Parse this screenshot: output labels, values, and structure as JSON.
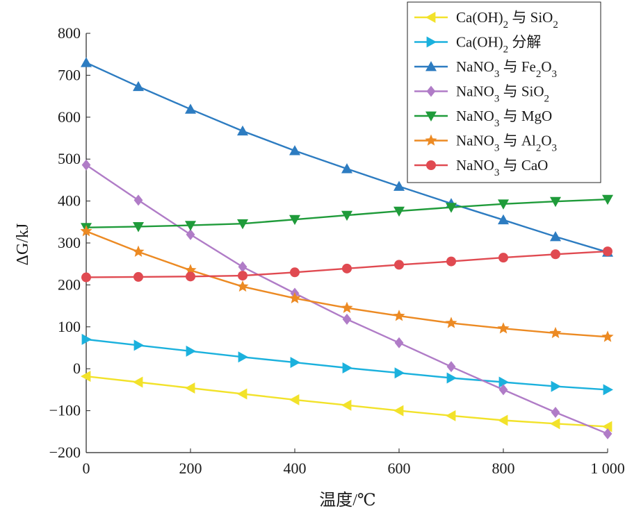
{
  "chart_data": {
    "type": "line",
    "xlabel": "温度/℃",
    "ylabel": "ΔG/kJ",
    "xlim": [
      0,
      1000
    ],
    "ylim": [
      -200,
      800
    ],
    "x": [
      0,
      100,
      200,
      300,
      400,
      500,
      600,
      700,
      800,
      900,
      1000
    ],
    "x_tick_labels": [
      "0",
      "200",
      "400",
      "600",
      "800",
      "1 000"
    ],
    "x_tick_values": [
      0,
      200,
      400,
      600,
      800,
      1000
    ],
    "y_tick_labels": [
      "−200",
      "−100",
      "0",
      "100",
      "200",
      "300",
      "400",
      "500",
      "600",
      "700",
      "800"
    ],
    "y_tick_values": [
      -200,
      -100,
      0,
      100,
      200,
      300,
      400,
      500,
      600,
      700,
      800
    ],
    "grid": false,
    "legend_position": "top-right",
    "series": [
      {
        "name": "Ca(OH)2 与 SiO2",
        "legend": {
          "a": "Ca(OH)",
          "a_sub": "2",
          "b": " 与 SiO",
          "b_sub": "2",
          "c": ""
        },
        "color": "#f2e22a",
        "marker": "triangle-left",
        "values": [
          -18,
          -32,
          -46,
          -60,
          -74,
          -87,
          -100,
          -112,
          -123,
          -131,
          -138
        ]
      },
      {
        "name": "Ca(OH)2 分解",
        "legend": {
          "a": "Ca(OH)",
          "a_sub": "2",
          "b": " 分解",
          "b_sub": "",
          "c": ""
        },
        "color": "#1bb1dd",
        "marker": "triangle-right",
        "values": [
          70,
          56,
          42,
          28,
          15,
          2,
          -10,
          -22,
          -32,
          -42,
          -50
        ]
      },
      {
        "name": "NaNO3 与 Fe2O3",
        "legend": {
          "a": "NaNO",
          "a_sub": "3",
          "b": " 与 Fe",
          "b_sub": "2",
          "c": "O",
          "c_sub": "3"
        },
        "color": "#2d7cc1",
        "marker": "triangle-up",
        "values": [
          730,
          673,
          619,
          567,
          520,
          477,
          435,
          394,
          355,
          315,
          278
        ]
      },
      {
        "name": "NaNO3 与 SiO2",
        "legend": {
          "a": "NaNO",
          "a_sub": "3",
          "b": " 与 SiO",
          "b_sub": "2",
          "c": ""
        },
        "color": "#b07cc7",
        "marker": "diamond",
        "values": [
          486,
          402,
          320,
          243,
          180,
          118,
          62,
          5,
          -50,
          -104,
          -155
        ]
      },
      {
        "name": "NaNO3 与 MgO",
        "legend": {
          "a": "NaNO",
          "a_sub": "3",
          "b": " 与 MgO",
          "b_sub": "",
          "c": ""
        },
        "color": "#1f9b3a",
        "marker": "triangle-down",
        "values": [
          337,
          339,
          342,
          346,
          356,
          366,
          376,
          385,
          393,
          399,
          404
        ]
      },
      {
        "name": "NaNO3 与 Al2O3",
        "legend": {
          "a": "NaNO",
          "a_sub": "3",
          "b": " 与 Al",
          "b_sub": "2",
          "c": "O",
          "c_sub": "3"
        },
        "color": "#ec8a23",
        "marker": "star",
        "values": [
          328,
          279,
          235,
          196,
          168,
          145,
          126,
          109,
          96,
          85,
          76
        ]
      },
      {
        "name": "NaNO3 与 CaO",
        "legend": {
          "a": "NaNO",
          "a_sub": "3",
          "b": " 与 CaO",
          "b_sub": "",
          "c": ""
        },
        "color": "#e04a51",
        "marker": "circle",
        "values": [
          218,
          219,
          220,
          222,
          230,
          239,
          248,
          256,
          265,
          273,
          280
        ]
      }
    ]
  }
}
